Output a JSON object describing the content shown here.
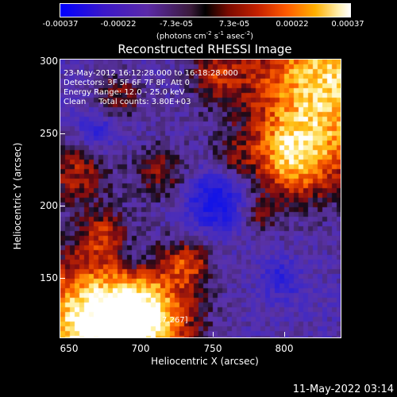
{
  "colorbar": {
    "ticks": [
      "-0.00037",
      "-0.00022",
      "-7.3e-05",
      "7.3e-05",
      "0.00022",
      "0.00037"
    ],
    "units_main": "(photons cm",
    "units_exp1": "-2",
    "units_mid": " s",
    "units_exp2": "-1",
    "units_mid2": " asec",
    "units_exp3": "-2",
    "units_end": ")"
  },
  "title": "Reconstructed RHESSI Image",
  "info": {
    "line1": "23-May-2012 16:12:28.000 to 16:18:28.000",
    "line2": "Detectors: 3F 5F 6F 7F 8F, Att 0",
    "line3": "Energy Range: 12.0 - 25.0 keV",
    "line4": "Clean     Total counts: 3.80E+03"
  },
  "peak_label": "Position of Peak = [817,267]",
  "axes": {
    "xlabel": "Heliocentric X (arcsec)",
    "ylabel": "Heliocentric Y (arcsec)",
    "xticks": [
      "650",
      "700",
      "750",
      "800"
    ],
    "yticks": [
      "300",
      "250",
      "200",
      "150"
    ]
  },
  "timestamp": "11-May-2022 03:14"
}
